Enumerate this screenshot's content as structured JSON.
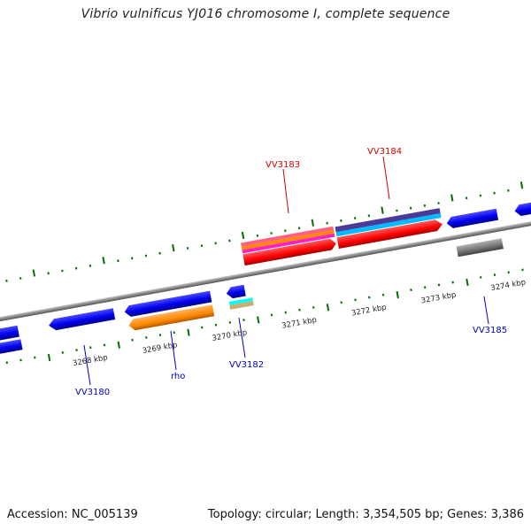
{
  "title": "Vibrio vulnificus YJ016 chromosome I, complete sequence",
  "footer": {
    "accession": "Accession: NC_005139",
    "summary": "Topology: circular; Length: 3,354,505 bp; Genes: 3,386"
  },
  "colors": {
    "backbone": "#808080",
    "tick": "#007000",
    "forward_label": "#d00000",
    "reverse_label": "#0000c0",
    "gene_blue": "#0000ee",
    "gene_red": "#ff0000",
    "gene_orange": "#ff8800",
    "gene_gray": "#707070",
    "gene_cyan": "#00bbff",
    "gene_purple": "#4a3a9a",
    "gene_pink": "#ff6080",
    "gene_magenta": "#ff20c0",
    "gene_tan": "#c8b070"
  },
  "scale": {
    "labels": [
      "3268 kbp",
      "3269 kbp",
      "3270 kbp",
      "3271 kbp",
      "3272 kbp",
      "3273 kbp",
      "3274 kbp"
    ]
  },
  "genes": {
    "vv3183": "VV3183",
    "vv3184": "VV3184",
    "vv3180": "VV3180",
    "rho": "rho",
    "vv3182": "VV3182",
    "vv3185": "VV3185"
  }
}
